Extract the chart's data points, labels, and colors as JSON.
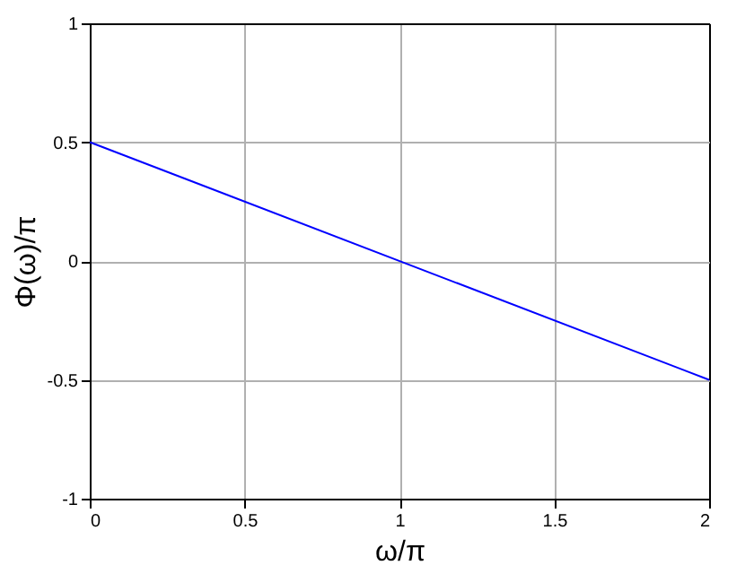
{
  "chart_data": {
    "type": "line",
    "xlabel": "ω/π",
    "ylabel": "Φ(ω)/π",
    "x": [
      0,
      2
    ],
    "series": [
      {
        "color": "#0000ff",
        "values": [
          0.5,
          -0.5
        ]
      }
    ],
    "xlim": [
      0,
      2
    ],
    "xticks": [
      0,
      0.5,
      1,
      1.5,
      2
    ],
    "ylim": [
      -1,
      1
    ],
    "yticks": [
      -1,
      -0.5,
      0,
      0.5,
      1
    ],
    "grid": true,
    "marker": "none",
    "line_style": "solid"
  }
}
